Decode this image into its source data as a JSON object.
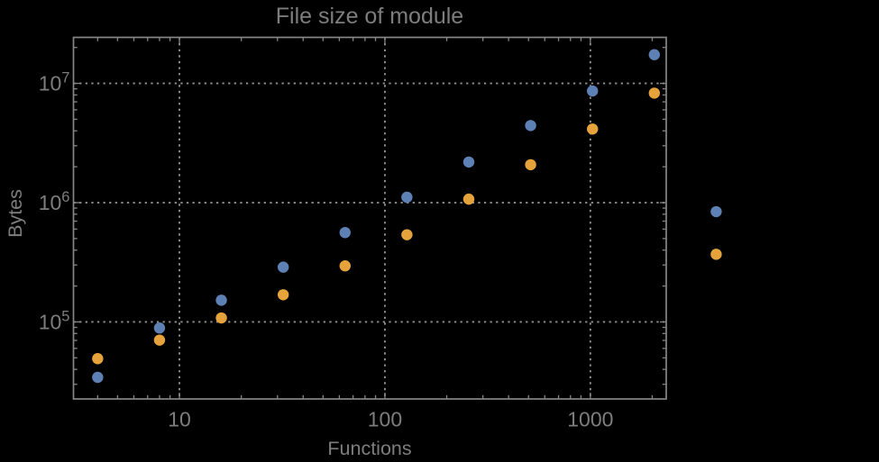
{
  "figure": {
    "title": "File size of module",
    "background": "#000000"
  },
  "axes": {
    "x": {
      "label": "Functions",
      "scale": "log",
      "major_ticks": [
        10,
        100,
        1000
      ],
      "major_tick_labels": [
        "10",
        "100",
        "1000"
      ]
    },
    "y": {
      "label": "Bytes",
      "scale": "log",
      "major_ticks": [
        100000,
        1000000,
        10000000
      ],
      "major_tick_base": "10",
      "major_tick_exponents": [
        "5",
        "6",
        "7"
      ]
    }
  },
  "chart_data": {
    "type": "scatter",
    "title": "File size of module",
    "xlabel": "Functions",
    "ylabel": "Bytes",
    "xscale": "log",
    "yscale": "log",
    "xlim": [
      3.05,
      2340
    ],
    "ylim": [
      22600,
      24300000
    ],
    "grid": "dotted-at-major-ticks",
    "legend": null,
    "clip_points_to_frame": false,
    "x": [
      4,
      8,
      16,
      32,
      64,
      128,
      256,
      512,
      1024,
      2048,
      4096
    ],
    "series": [
      {
        "name": "series-1-blue",
        "color": "#5e81b5",
        "values": [
          34300,
          88900,
          152000,
          288000,
          561000,
          1110000,
          2190000,
          4430000,
          8630000,
          17400000,
          840000
        ]
      },
      {
        "name": "series-2-orange",
        "color": "#e7a33b",
        "values": [
          49200,
          70400,
          108000,
          169000,
          295000,
          538000,
          1070000,
          2080000,
          4140000,
          8280000,
          369000
        ]
      }
    ]
  },
  "colors": {
    "background": "#000000",
    "frame": "#868686",
    "gridline": "#8f8f8f",
    "tick": "#868686",
    "text": "#7d7d7d"
  }
}
